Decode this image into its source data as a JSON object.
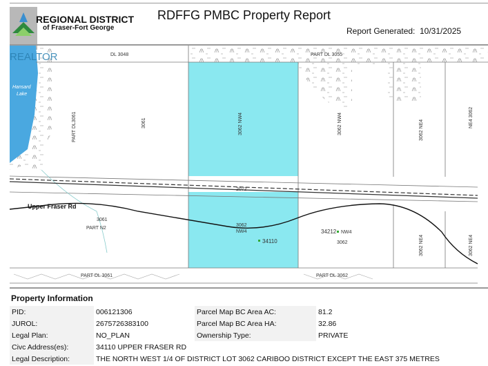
{
  "header": {
    "logo": {
      "line1": "REGIONAL DISTRICT",
      "line2": "of Fraser-Fort George"
    },
    "title": "RDFFG PMBC Property Report",
    "report_generated_label": "Report Generated:",
    "report_generated_date": "10/31/2025",
    "watermark": "REALTOR"
  },
  "map": {
    "labels": {
      "dl3048": "DL 3048",
      "part_dl3055": "PART DL 3055",
      "hansard1": "Hansard",
      "hansard2": "Lake",
      "part_dl3061_v": "PART DL3061",
      "l3061": "3061",
      "l3062nw4": "3062 NW4",
      "l3062nw4b": "3062 NW4",
      "l3062ne4": "3062 NE4",
      "ne4_3062": "NE4 3062",
      "rail": "2072",
      "road": "Upper Fraser Rd",
      "l3061b": "3061",
      "partn2": "PART N2",
      "s3062": "3062",
      "snw4": "NW4",
      "civic1": "34110",
      "civic2": "34212",
      "nw4c": "NW4",
      "c3062": "3062",
      "se_3062ne4": "3062 NE4",
      "se_3062ne4b": "3062 NE4",
      "part_dl3061": "PART DL 3061",
      "part_dl3062": "PART DL 3062"
    },
    "colors": {
      "subject_parcel": "#8ae8f0",
      "lake": "#4aa8e0"
    }
  },
  "property_info": {
    "title": "Property Information",
    "rows": [
      {
        "label": "PID:",
        "value": "006121306",
        "label2": "Parcel Map BC Area AC:",
        "value2": "81.2"
      },
      {
        "label": "JUROL:",
        "value": "2675726383100",
        "label2": "Parcel Map BC Area HA:",
        "value2": "32.86"
      },
      {
        "label": "Legal Plan:",
        "value": "NO_PLAN",
        "label2": "Ownership Type:",
        "value2": "PRIVATE"
      },
      {
        "label": "Civc Address(es):",
        "value": "34110 UPPER FRASER RD"
      },
      {
        "label": "Legal Description:",
        "value": "THE NORTH WEST 1/4 OF DISTRICT LOT 3062 CARIBOO DISTRICT EXCEPT THE EAST 375 METRES"
      }
    ]
  }
}
